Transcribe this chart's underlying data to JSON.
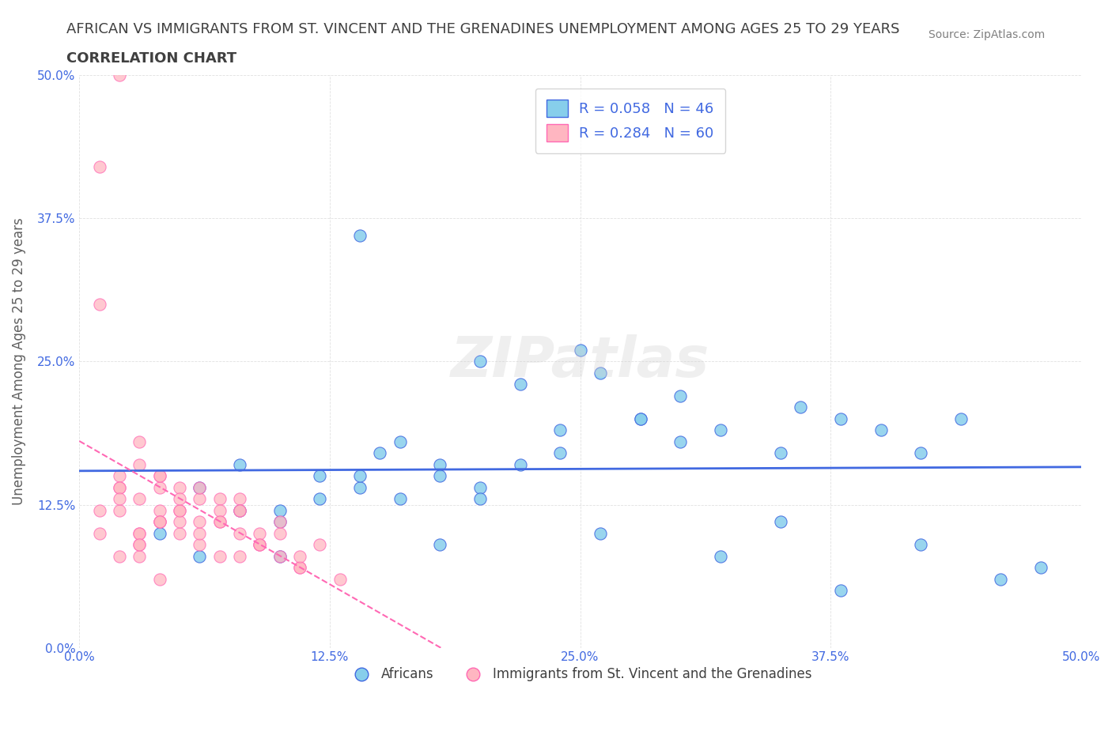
{
  "title_line1": "AFRICAN VS IMMIGRANTS FROM ST. VINCENT AND THE GRENADINES UNEMPLOYMENT AMONG AGES 25 TO 29 YEARS",
  "title_line2": "CORRELATION CHART",
  "source_text": "Source: ZipAtlas.com",
  "xlabel": "",
  "ylabel": "Unemployment Among Ages 25 to 29 years",
  "xlim": [
    0,
    0.5
  ],
  "ylim": [
    0,
    0.5
  ],
  "xtick_labels": [
    "0.0%",
    "12.5%",
    "25.0%",
    "37.5%",
    "50.0%"
  ],
  "xtick_vals": [
    0.0,
    0.125,
    0.25,
    0.375,
    0.5
  ],
  "ytick_labels": [
    "0.0%",
    "12.5%",
    "25.0%",
    "37.5%",
    "50.0%"
  ],
  "ytick_vals": [
    0.0,
    0.125,
    0.25,
    0.375,
    0.5
  ],
  "legend_R_blue": "R = 0.058",
  "legend_N_blue": "N = 46",
  "legend_R_pink": "R = 0.284",
  "legend_N_pink": "N = 60",
  "blue_label": "Africans",
  "pink_label": "Immigrants from St. Vincent and the Grenadines",
  "blue_color": "#87CEEB",
  "blue_line_color": "#4169E1",
  "pink_color": "#FFB6C1",
  "pink_line_color": "#FF69B4",
  "blue_scatter_x": [
    0.04,
    0.06,
    0.08,
    0.06,
    0.1,
    0.12,
    0.08,
    0.14,
    0.1,
    0.12,
    0.15,
    0.16,
    0.14,
    0.18,
    0.2,
    0.16,
    0.18,
    0.22,
    0.2,
    0.24,
    0.14,
    0.22,
    0.26,
    0.28,
    0.24,
    0.3,
    0.28,
    0.32,
    0.26,
    0.35,
    0.3,
    0.38,
    0.4,
    0.36,
    0.42,
    0.44,
    0.38,
    0.46,
    0.48,
    0.2,
    0.1,
    0.18,
    0.32,
    0.42,
    0.35,
    0.25
  ],
  "blue_scatter_y": [
    0.1,
    0.08,
    0.12,
    0.14,
    0.11,
    0.13,
    0.16,
    0.14,
    0.12,
    0.15,
    0.17,
    0.13,
    0.15,
    0.16,
    0.14,
    0.18,
    0.15,
    0.16,
    0.13,
    0.17,
    0.36,
    0.23,
    0.24,
    0.2,
    0.19,
    0.18,
    0.2,
    0.19,
    0.1,
    0.17,
    0.22,
    0.2,
    0.19,
    0.21,
    0.17,
    0.2,
    0.05,
    0.06,
    0.07,
    0.25,
    0.08,
    0.09,
    0.08,
    0.09,
    0.11,
    0.26
  ],
  "pink_scatter_x": [
    0.02,
    0.01,
    0.03,
    0.02,
    0.04,
    0.01,
    0.03,
    0.02,
    0.04,
    0.03,
    0.05,
    0.02,
    0.04,
    0.03,
    0.05,
    0.04,
    0.06,
    0.03,
    0.05,
    0.04,
    0.06,
    0.05,
    0.07,
    0.04,
    0.06,
    0.05,
    0.08,
    0.06,
    0.07,
    0.05,
    0.08,
    0.07,
    0.09,
    0.06,
    0.08,
    0.07,
    0.1,
    0.08,
    0.09,
    0.07,
    0.11,
    0.09,
    0.1,
    0.08,
    0.12,
    0.1,
    0.11,
    0.09,
    0.13,
    0.11,
    0.01,
    0.02,
    0.03,
    0.02,
    0.03,
    0.04,
    0.02,
    0.01,
    0.04,
    0.03
  ],
  "pink_scatter_y": [
    0.5,
    0.42,
    0.1,
    0.08,
    0.06,
    0.12,
    0.09,
    0.14,
    0.11,
    0.13,
    0.1,
    0.15,
    0.12,
    0.08,
    0.14,
    0.11,
    0.13,
    0.1,
    0.12,
    0.14,
    0.09,
    0.11,
    0.13,
    0.15,
    0.1,
    0.12,
    0.08,
    0.14,
    0.11,
    0.13,
    0.1,
    0.12,
    0.09,
    0.11,
    0.13,
    0.08,
    0.1,
    0.12,
    0.09,
    0.11,
    0.07,
    0.1,
    0.08,
    0.12,
    0.09,
    0.11,
    0.07,
    0.09,
    0.06,
    0.08,
    0.3,
    0.14,
    0.16,
    0.12,
    0.18,
    0.15,
    0.13,
    0.1,
    0.11,
    0.09
  ],
  "watermark": "ZIPatlas",
  "background_color": "#ffffff",
  "grid_color": "#dddddd",
  "title_color": "#404040",
  "axis_label_color": "#606060",
  "tick_color": "#4169E1",
  "source_color": "#808080"
}
